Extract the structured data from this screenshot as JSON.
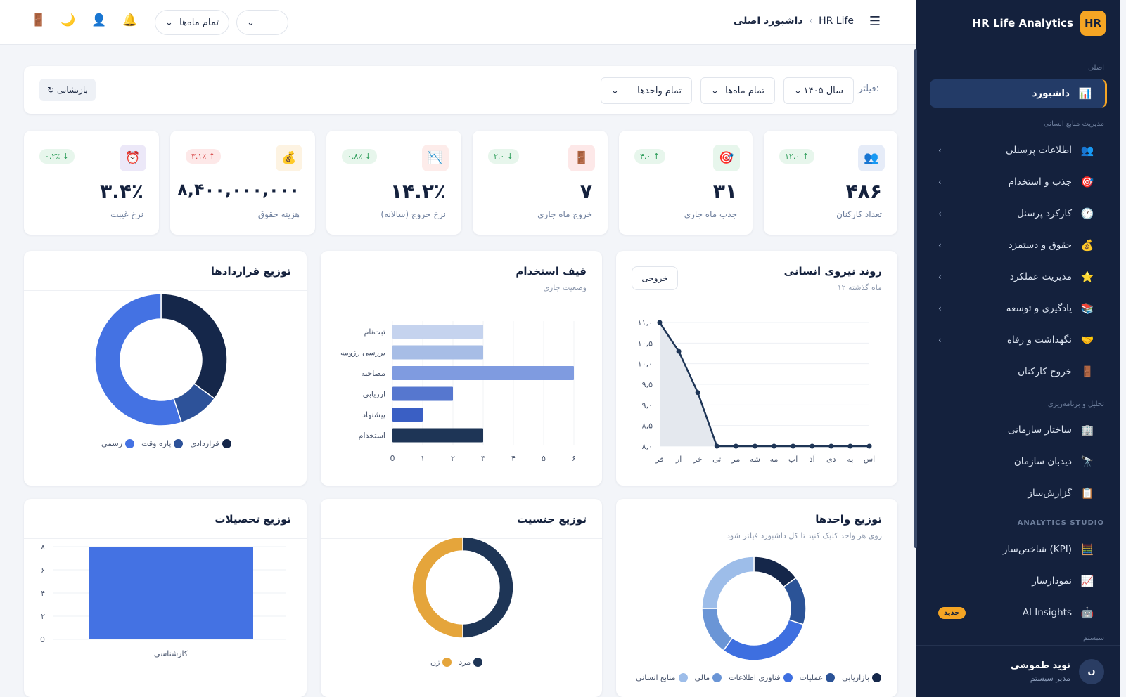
{
  "sidebar": {
    "brand": "HR Life Analytics",
    "logo": "HR",
    "sections": {
      "main": "اصلی",
      "hr": "مدیریت منابع انسانی",
      "analysis": "تحلیل و برنامه‌ریزی",
      "studio": "ANALYTICS STUDIO",
      "system": "سیستم"
    },
    "items": [
      {
        "label": "داشبورد",
        "icon": "📊"
      },
      {
        "label": "اطلاعات پرسنلی",
        "icon": "👥"
      },
      {
        "label": "جذب و استخدام",
        "icon": "🎯"
      },
      {
        "label": "کارکرد پرسنل",
        "icon": "🕐"
      },
      {
        "label": "حقوق و دستمزد",
        "icon": "💰"
      },
      {
        "label": "مدیریت عملکرد",
        "icon": "⭐"
      },
      {
        "label": "یادگیری و توسعه",
        "icon": "📚"
      },
      {
        "label": "نگهداشت و رفاه",
        "icon": "🤝"
      },
      {
        "label": "خروج کارکنان",
        "icon": "🚪"
      },
      {
        "label": "ساختار سازمانی",
        "icon": "🏢"
      },
      {
        "label": "دیدبان سازمان",
        "icon": "🔭"
      },
      {
        "label": "گزارش‌ساز",
        "icon": "📋"
      },
      {
        "label": "شاخص‌ساز (KPI)",
        "icon": "🧮"
      },
      {
        "label": "نمودارساز",
        "icon": "📈"
      },
      {
        "label": "AI Insights",
        "icon": "🤖"
      }
    ],
    "new_badge": "جدید",
    "user": {
      "name": "نوید طموشی",
      "role": "مدیر سیستم",
      "avatar": "ن"
    }
  },
  "topbar": {
    "breadcrumb_root": "HR Life",
    "breadcrumb_sep": "›",
    "breadcrumb_page": "داشبورد اصلی",
    "month_select": "تمام ماه‌ها",
    "empty_select": ""
  },
  "filters": {
    "label": "فیلتر:",
    "year": "سال ۱۴۰۵",
    "month": "تمام ماه‌ها",
    "unit": "تمام واحدها",
    "reset": "↻ بازنشانی"
  },
  "kpis": [
    {
      "label": "تعداد کارکنان",
      "value": "۴۸۶",
      "trend": "۱۲.۰ ↑",
      "icon": "👥",
      "icon_bg": "#e6ecf8",
      "trend_class": "up"
    },
    {
      "label": "جذب ماه جاری",
      "value": "۳۱",
      "trend": "۴.۰ ↑",
      "icon": "🎯",
      "icon_bg": "#e7f6ec",
      "trend_class": "up"
    },
    {
      "label": "خروج ماه جاری",
      "value": "۷",
      "trend": "۲.۰ ↓",
      "icon": "🚪",
      "icon_bg": "#fde8e8",
      "trend_class": "down"
    },
    {
      "label": "نرخ خروج (سالانه)",
      "value": "۱۴.۲٪",
      "trend": "۰.۸٪ ↓",
      "icon": "📉",
      "icon_bg": "#fdecea",
      "trend_class": "down"
    },
    {
      "label": "هزینه حقوق",
      "value": "۸,۴۰۰,۰۰۰,۰۰۰",
      "trend": "۳.۱٪ ↑",
      "icon": "💰",
      "icon_bg": "#fdf3e2",
      "trend_class": "red"
    },
    {
      "label": "نرخ غیبت",
      "value": "۳.۴٪",
      "trend": "۰.۲٪ ↓",
      "icon": "⏰",
      "icon_bg": "#ece8f8",
      "trend_class": "down"
    }
  ],
  "charts": {
    "trend": {
      "title": "روند نیروی انسانی",
      "subtitle": "۱۲ ماه گذشته",
      "export": "خروجی"
    },
    "funnel": {
      "title": "قیف استخدام",
      "subtitle": "وضعیت جاری"
    },
    "contracts": {
      "title": "توزیع قراردادها"
    },
    "units": {
      "title": "توزیع واحدها",
      "subtitle": "روی هر واحد کلیک کنید تا کل داشبورد فیلتر شود"
    },
    "gender": {
      "title": "توزیع جنسیت"
    },
    "education": {
      "title": "توزیع تحصیلات"
    }
  },
  "chart_data": [
    {
      "type": "line",
      "title": "روند نیروی انسانی",
      "x": [
        "فر",
        "ار",
        "خر",
        "تی",
        "مر",
        "شه",
        "مه",
        "آب",
        "آذ",
        "دی",
        "به",
        "اس"
      ],
      "values": [
        11.0,
        10.3,
        9.3,
        8.0,
        8.0,
        8.0,
        8.0,
        8.0,
        8.0,
        8.0,
        8.0,
        8.0
      ],
      "y_ticks": [
        "۱۱,۰",
        "۱۰,۵",
        "۱۰,۰",
        "۹,۵",
        "۹,۰",
        "۸,۵",
        "۸,۰"
      ],
      "ylim": [
        8,
        11
      ],
      "color": "#1e3556"
    },
    {
      "type": "bar",
      "orientation": "horizontal",
      "title": "قیف استخدام",
      "categories": [
        "ثبت‌نام",
        "بررسی رزومه",
        "مصاحبه",
        "ارزیابی",
        "پیشنهاد",
        "استخدام"
      ],
      "values": [
        3,
        3,
        6,
        2,
        1,
        3
      ],
      "colors": [
        "#c5d3ee",
        "#a7bde6",
        "#7f9be0",
        "#5677cf",
        "#3a5fc4",
        "#1e3556"
      ],
      "x_ticks": [
        "0",
        "۱",
        "۲",
        "۳",
        "۴",
        "۵",
        "۶"
      ],
      "xlim": [
        0,
        6
      ]
    },
    {
      "type": "pie",
      "title": "توزیع قراردادها",
      "labels": [
        "رسمی",
        "پاره وقت",
        "قراردادی"
      ],
      "values": [
        55,
        10,
        35
      ],
      "colors": [
        "#4472e3",
        "#2d5299",
        "#15274a"
      ]
    },
    {
      "type": "pie",
      "title": "توزیع واحدها",
      "labels": [
        "منابع انسانی",
        "مالی",
        "فناوری اطلاعات",
        "عملیات",
        "بازاریابی"
      ],
      "values": [
        25,
        15,
        30,
        15,
        15
      ],
      "colors": [
        "#9dbde9",
        "#6a95d6",
        "#3e6fe0",
        "#2b5397",
        "#15274a"
      ]
    },
    {
      "type": "pie",
      "title": "توزیع جنسیت",
      "labels": [
        "زن",
        "مرد"
      ],
      "values": [
        50,
        50
      ],
      "colors": [
        "#e5a53b",
        "#1e3556"
      ]
    },
    {
      "type": "bar",
      "title": "توزیع تحصیلات",
      "categories": [
        "کارشناسی"
      ],
      "values": [
        8
      ],
      "y_ticks": [
        "0",
        "۲",
        "۴",
        "۶",
        "۸"
      ],
      "ylim": [
        0,
        8
      ],
      "color": "#4472e3"
    }
  ]
}
